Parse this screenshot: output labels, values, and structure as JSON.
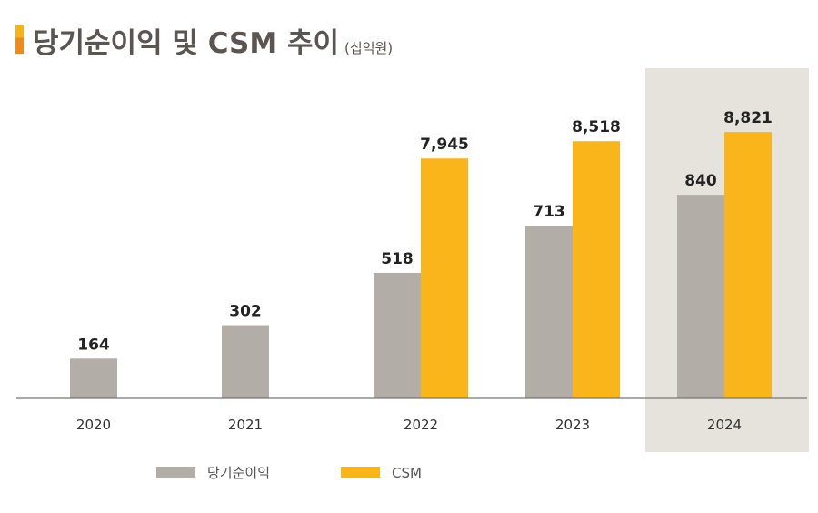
{
  "title": "당기순이익 및 CSM 추이",
  "unit": "(십억원)",
  "chart_data": {
    "type": "bar",
    "title": "당기순이익 및 CSM 추이",
    "unit": "(십억원)",
    "categories": [
      "2020",
      "2021",
      "2022",
      "2023",
      "2024"
    ],
    "series": [
      {
        "name": "당기순이익",
        "color": "#b3ada8",
        "values": [
          164,
          302,
          518,
          713,
          840
        ],
        "labels": [
          "164",
          "302",
          "518",
          "713",
          "840"
        ]
      },
      {
        "name": "CSM",
        "color": "#f9b519",
        "values": [
          null,
          null,
          7945,
          8518,
          8821
        ],
        "labels": [
          "",
          "",
          "7,945",
          "8,518",
          "8,821"
        ]
      }
    ],
    "highlighted_category": "2024",
    "highlight_color": "#e6e2dc",
    "legend_position": "bottom-left",
    "grid": false,
    "dual_axis_hidden": true
  }
}
